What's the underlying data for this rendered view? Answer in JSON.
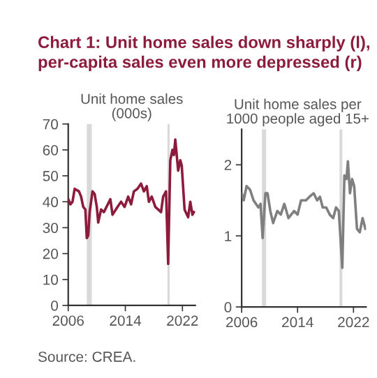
{
  "chart_data": [
    {
      "type": "line",
      "title": "Chart 1: Unit home sales down sharply (l),\nper-capita sales even more depressed (r)",
      "subtitle": "Unit home sales\n(000s)",
      "annotations": [
        "Source: CREA."
      ],
      "series": [
        {
          "color": "#8c1b3c",
          "x": [
            2006.0,
            2006.3,
            2006.6,
            2006.9,
            2007.5,
            2007.8,
            2008.1,
            2008.4,
            2008.6,
            2008.8,
            2009.0,
            2009.4,
            2009.7,
            2010.0,
            2010.2,
            2010.6,
            2011.0,
            2011.9,
            2012.2,
            2012.9,
            2013.4,
            2013.9,
            2014.4,
            2014.8,
            2015.2,
            2015.7,
            2016.2,
            2016.6,
            2017.0,
            2017.3,
            2017.7,
            2018.2,
            2018.6,
            2019.0,
            2019.3,
            2019.7,
            2020.0,
            2020.3,
            2020.6,
            2020.8,
            2021.0,
            2021.4,
            2021.7,
            2021.9,
            2022.3,
            2022.8,
            2023.1,
            2023.4,
            2023.6
          ],
          "values": [
            41,
            39,
            40,
            45,
            44,
            42,
            38,
            37,
            26,
            27,
            36,
            44,
            43,
            38,
            32,
            37,
            36,
            41,
            35,
            38,
            40,
            38,
            42,
            39,
            44,
            45,
            47,
            44,
            46,
            40,
            42,
            38,
            37,
            36,
            42,
            44,
            16,
            56,
            60,
            58,
            64,
            52,
            56,
            54,
            37,
            34,
            40,
            35,
            36
          ]
        }
      ],
      "xlim": [
        2006,
        2023.8
      ],
      "xticks": [
        2006,
        2014,
        2022
      ],
      "ylim": [
        0,
        70
      ],
      "yticks": [
        0,
        10,
        20,
        30,
        40,
        50,
        60,
        70
      ],
      "bands": [
        {
          "axis": "x",
          "from": 2008.6,
          "to": 2009.3,
          "color": "#d9d9d9"
        },
        {
          "axis": "x",
          "from": 2019.9,
          "to": 2020.2,
          "color": "#d9d9d9"
        }
      ],
      "grid": false,
      "legend": false
    },
    {
      "type": "line",
      "subtitle": "Unit home sales per\n1000 people aged 15+",
      "series": [
        {
          "color": "#7f7f7f",
          "x": [
            2006.0,
            2006.3,
            2006.7,
            2007.2,
            2007.7,
            2008.4,
            2008.7,
            2009.0,
            2009.4,
            2009.7,
            2010.1,
            2010.5,
            2011.1,
            2011.6,
            2012.1,
            2012.7,
            2013.5,
            2014.0,
            2014.5,
            2015.2,
            2015.7,
            2016.3,
            2016.8,
            2017.2,
            2017.6,
            2018.1,
            2018.6,
            2019.1,
            2019.5,
            2019.9,
            2020.4,
            2020.7,
            2021.0,
            2021.2,
            2021.5,
            2021.8,
            2022.1,
            2022.5,
            2022.9,
            2023.3,
            2023.7
          ],
          "values": [
            1.6,
            1.5,
            1.7,
            1.65,
            1.5,
            1.4,
            1.45,
            0.97,
            1.6,
            1.6,
            1.35,
            1.18,
            1.35,
            1.3,
            1.45,
            1.25,
            1.35,
            1.3,
            1.5,
            1.5,
            1.55,
            1.6,
            1.5,
            1.55,
            1.4,
            1.4,
            1.3,
            1.25,
            1.4,
            1.35,
            0.55,
            1.85,
            1.8,
            2.05,
            1.6,
            1.8,
            1.7,
            1.1,
            1.05,
            1.25,
            1.1
          ]
        }
      ],
      "xlim": [
        2006,
        2023.8
      ],
      "xticks": [
        2006,
        2014,
        2022
      ],
      "ylim": [
        0,
        2.5
      ],
      "yticks": [
        0,
        1,
        2
      ],
      "bands": [
        {
          "axis": "x",
          "from": 2008.9,
          "to": 2009.5,
          "color": "#d9d9d9"
        },
        {
          "axis": "x",
          "from": 2020.0,
          "to": 2020.4,
          "color": "#d9d9d9"
        }
      ],
      "grid": false,
      "legend": false
    }
  ]
}
